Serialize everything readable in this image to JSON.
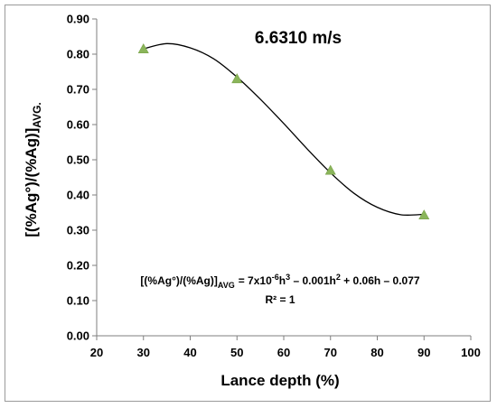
{
  "chart_data": {
    "type": "scatter",
    "title": "6.6310 m/s",
    "xlabel": "Lance depth (%)",
    "ylabel": {
      "main": "[(%Ag°)/(%Ag)]",
      "sub": "AVG."
    },
    "xlim": [
      20,
      100
    ],
    "ylim": [
      0,
      0.9
    ],
    "x_ticks": [
      "20",
      "30",
      "40",
      "50",
      "60",
      "70",
      "80",
      "90",
      "100"
    ],
    "y_ticks": [
      "0.00",
      "0.10",
      "0.20",
      "0.30",
      "0.40",
      "0.50",
      "0.60",
      "0.70",
      "0.80",
      "0.90"
    ],
    "series": [
      {
        "x": [
          30,
          50,
          70,
          90
        ],
        "y": [
          0.815,
          0.73,
          0.47,
          0.343
        ],
        "marker": "triangle",
        "color": "#8ab55a"
      }
    ],
    "trendline": {
      "type": "polynomial-3",
      "x_range": [
        30,
        90
      ],
      "points": [
        [
          30,
          0.815
        ],
        [
          35,
          0.83
        ],
        [
          40,
          0.818
        ],
        [
          45,
          0.787
        ],
        [
          50,
          0.735
        ],
        [
          55,
          0.672
        ],
        [
          60,
          0.603
        ],
        [
          65,
          0.531
        ],
        [
          70,
          0.463
        ],
        [
          75,
          0.405
        ],
        [
          80,
          0.365
        ],
        [
          85,
          0.344
        ],
        [
          90,
          0.345
        ]
      ],
      "color": "#000000"
    },
    "equation": {
      "lhs_main": "[(%Ag°)/(%Ag)]",
      "lhs_sub": "AVG",
      "rhs": "= 7x10",
      "exp1": "-6",
      "rest1": "h",
      "exp2": "3",
      "rest2": " – 0.001h",
      "exp3": "2",
      "rest3": " + 0.06h – 0.077",
      "r2": "R² = 1"
    },
    "grid": false,
    "legend": "none"
  }
}
